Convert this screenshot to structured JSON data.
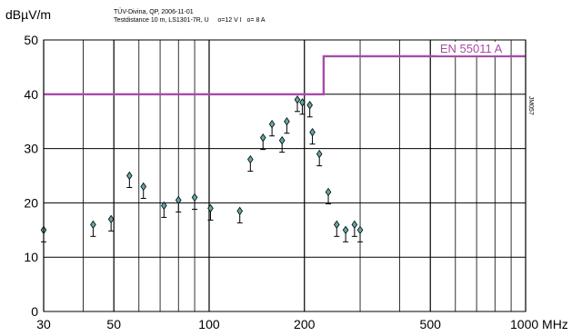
{
  "header": {
    "ylabel": "dBµV/m",
    "note_line1": "TÜV-Divina, QP, 2006-11-01",
    "note_line2": "Testdistance 10 m, LS1301-7R, U",
    "note_u": "o=12 V I",
    "note_i": "o= 8 A"
  },
  "colors": {
    "limit": "#a64ca6",
    "marker": "#5fa8a8",
    "grid": "#000000"
  },
  "chart_data": {
    "type": "scatter",
    "xscale": "log",
    "xlim": [
      30,
      1000
    ],
    "ylim": [
      0,
      50
    ],
    "x_unit": "MHz",
    "xlabel": "",
    "ylabel": "dBµV/m",
    "grid": true,
    "x_major_ticks": [
      30,
      50,
      100,
      200,
      500,
      1000
    ],
    "x_tick_labels": [
      "30",
      "50",
      "100",
      "200",
      "500",
      "1000 MHz"
    ],
    "y_ticks": [
      0,
      10,
      20,
      30,
      40,
      50
    ],
    "x_gridlines": [
      30,
      40,
      50,
      60,
      70,
      80,
      90,
      100,
      200,
      300,
      400,
      500,
      600,
      700,
      800,
      900,
      1000
    ],
    "limit_label": "EN 55011 A",
    "limit_line": [
      [
        30,
        40
      ],
      [
        230,
        40
      ],
      [
        230,
        47
      ],
      [
        1000,
        47
      ]
    ],
    "side_label": "JM057",
    "points": [
      {
        "x": 30,
        "y": 15
      },
      {
        "x": 43,
        "y": 16
      },
      {
        "x": 49,
        "y": 17
      },
      {
        "x": 56,
        "y": 25
      },
      {
        "x": 62,
        "y": 23
      },
      {
        "x": 72,
        "y": 19.5
      },
      {
        "x": 80,
        "y": 20.5
      },
      {
        "x": 90,
        "y": 21
      },
      {
        "x": 101,
        "y": 19
      },
      {
        "x": 125,
        "y": 18.5
      },
      {
        "x": 135,
        "y": 28
      },
      {
        "x": 148,
        "y": 32
      },
      {
        "x": 158,
        "y": 34.5
      },
      {
        "x": 170,
        "y": 31.5
      },
      {
        "x": 176,
        "y": 35
      },
      {
        "x": 190,
        "y": 39
      },
      {
        "x": 197,
        "y": 38.5
      },
      {
        "x": 208,
        "y": 38
      },
      {
        "x": 212,
        "y": 33
      },
      {
        "x": 223,
        "y": 29
      },
      {
        "x": 238,
        "y": 22
      },
      {
        "x": 253,
        "y": 16
      },
      {
        "x": 270,
        "y": 15
      },
      {
        "x": 288,
        "y": 16
      },
      {
        "x": 300,
        "y": 15
      }
    ]
  }
}
